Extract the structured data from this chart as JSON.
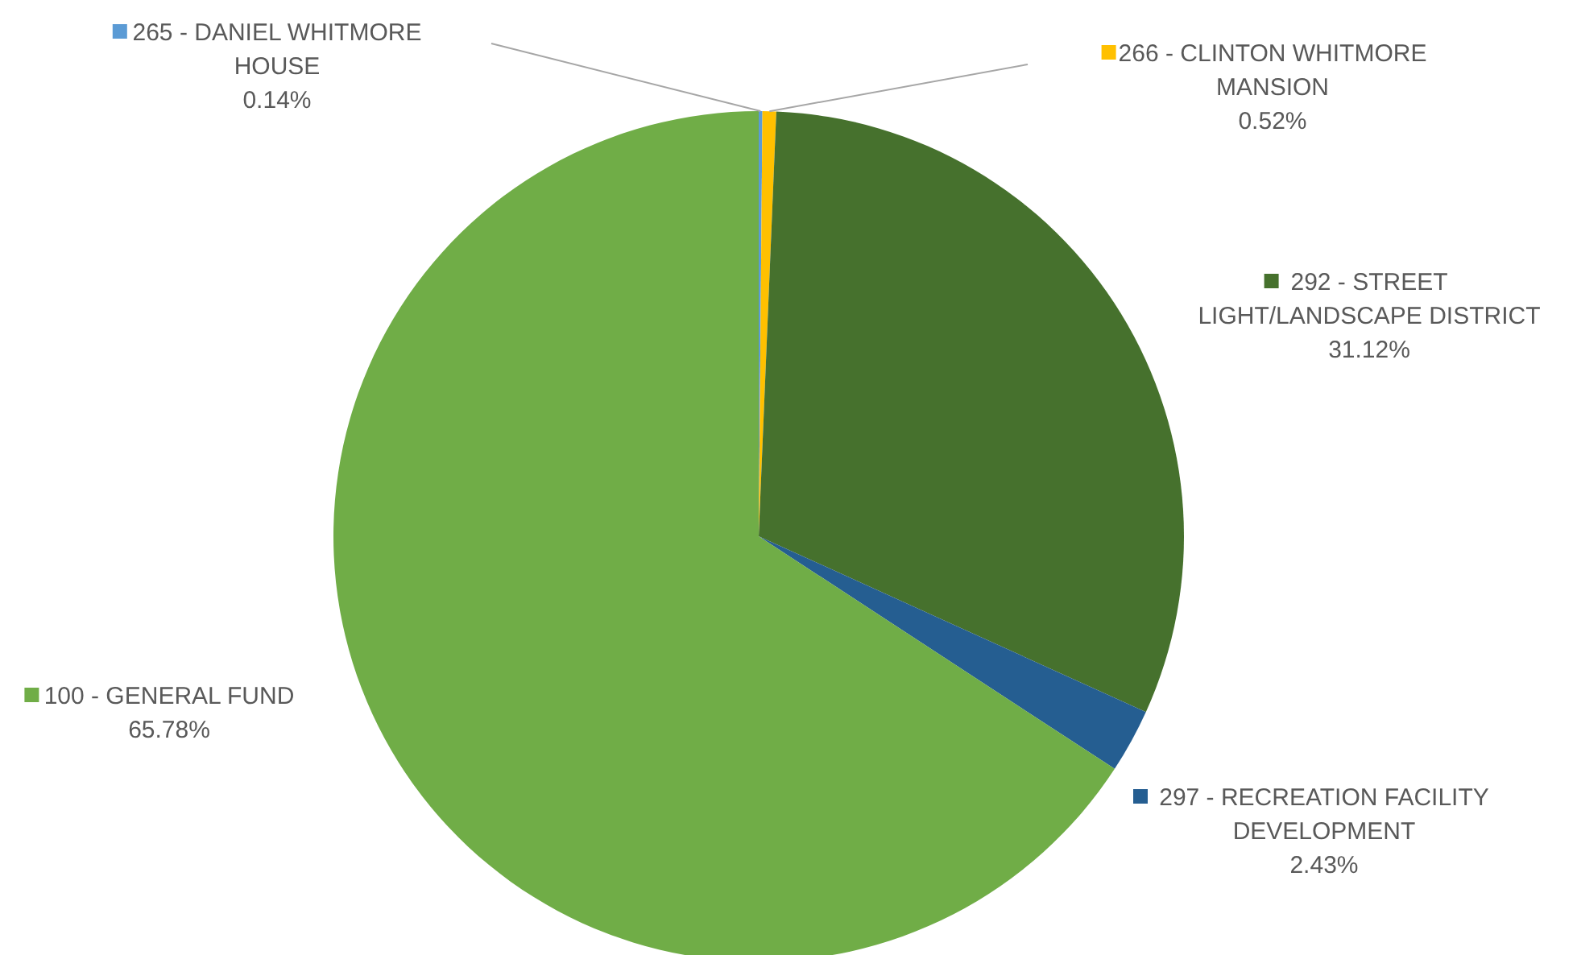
{
  "chart_data": {
    "type": "pie",
    "categories": [
      "265 - DANIEL WHITMORE HOUSE",
      "266 - CLINTON WHITMORE MANSION",
      "292 - STREET LIGHT/LANDSCAPE DISTRICT",
      "297 - RECREATION FACILITY DEVELOPMENT",
      "100 - GENERAL FUND"
    ],
    "values": [
      0.14,
      0.52,
      31.12,
      2.43,
      65.78
    ],
    "value_labels": [
      "0.14%",
      "0.52%",
      "31.12%",
      "2.43%",
      "65.78%"
    ],
    "colors": [
      "#5b9bd5",
      "#ffc000",
      "#46712d",
      "#255e91",
      "#70ad47"
    ],
    "legend": "right"
  }
}
